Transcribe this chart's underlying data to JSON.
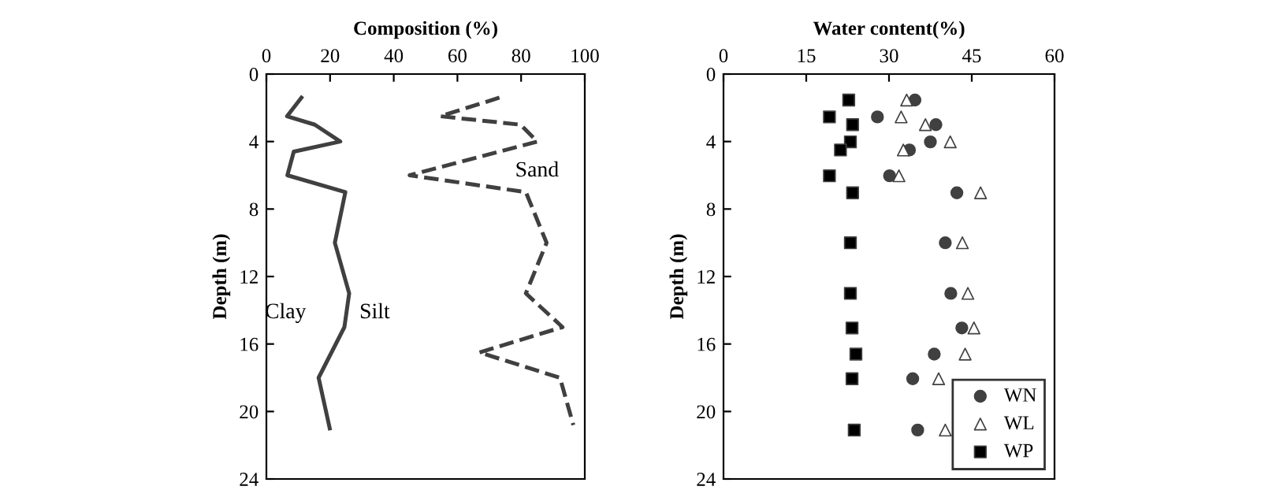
{
  "chart_data": [
    {
      "type": "line",
      "title": "Composition (%)",
      "ylabel": "Depth (m)",
      "marker": "none",
      "xlim": [
        0,
        100
      ],
      "xticks": [
        0,
        20,
        40,
        60,
        80,
        100
      ],
      "ylim": [
        24,
        0
      ],
      "yticks": [
        0,
        4,
        8,
        12,
        16,
        20,
        24
      ],
      "grid": false,
      "legend": false,
      "series": [
        {
          "color": "#404040",
          "line_style": "solid",
          "x": [
            11,
            6.5,
            15.2,
            23.2,
            8.6,
            6.6,
            24.8,
            21.5,
            26,
            24.5,
            16.4,
            19.9
          ],
          "values": [
            1.4,
            2.5,
            3.0,
            4.0,
            4.6,
            6.0,
            7.0,
            10.0,
            13.0,
            15.0,
            18.0,
            21.0
          ]
        },
        {
          "color": "#404040",
          "line_style": "dashed",
          "x": [
            73.2,
            54.6,
            79.8,
            85.1,
            45,
            81.5,
            88,
            81.5,
            93,
            66.9,
            92.2,
            96.4
          ],
          "values": [
            1.4,
            2.5,
            3.0,
            4.0,
            6.0,
            7.0,
            10.0,
            13.0,
            15.0,
            16.5,
            18.0,
            20.8
          ]
        }
      ],
      "annotations": [
        "Clay",
        "Silt",
        "Sand"
      ]
    },
    {
      "type": "scatter",
      "title": "Water content(%)",
      "ylabel": "Depth (m)",
      "xlim": [
        0,
        60
      ],
      "xticks": [
        0,
        15,
        30,
        45,
        60
      ],
      "ylim": [
        24,
        0
      ],
      "yticks": [
        0,
        4,
        8,
        12,
        16,
        20,
        24
      ],
      "grid": false,
      "legend": "bottom right",
      "series": [
        {
          "name": "WN",
          "color": "#404040",
          "marker": "circle",
          "x": [
            34.7,
            27.9,
            38.5,
            37.5,
            33.7,
            30.1,
            42.3,
            40.2,
            41.2,
            43.2,
            38.2,
            34.3,
            35.2
          ],
          "values": [
            1.54,
            2.54,
            3.0,
            4.02,
            4.5,
            6.03,
            7.04,
            10.0,
            13.0,
            15.05,
            16.6,
            18.06,
            21.1
          ]
        },
        {
          "name": "WL",
          "color": "#ffffff",
          "marker": "triangle",
          "x": [
            33.2,
            32.2,
            36.6,
            41.1,
            32.6,
            31.8,
            46.6,
            43.3,
            44.3,
            45.4,
            43.8,
            39,
            40.2
          ],
          "values": [
            1.54,
            2.54,
            3.0,
            4.02,
            4.5,
            6.03,
            7.04,
            10.0,
            13.0,
            15.05,
            16.6,
            18.06,
            21.1
          ]
        },
        {
          "name": "WP",
          "color": "#000000",
          "marker": "square",
          "x": [
            22.7,
            19.2,
            23.4,
            23,
            21.2,
            19.2,
            23.4,
            23,
            23,
            23.3,
            24,
            23.3,
            23.7
          ],
          "values": [
            1.54,
            2.54,
            3.0,
            4.02,
            4.5,
            6.03,
            7.04,
            10.0,
            13.0,
            15.05,
            16.6,
            18.06,
            21.1
          ]
        }
      ]
    }
  ]
}
